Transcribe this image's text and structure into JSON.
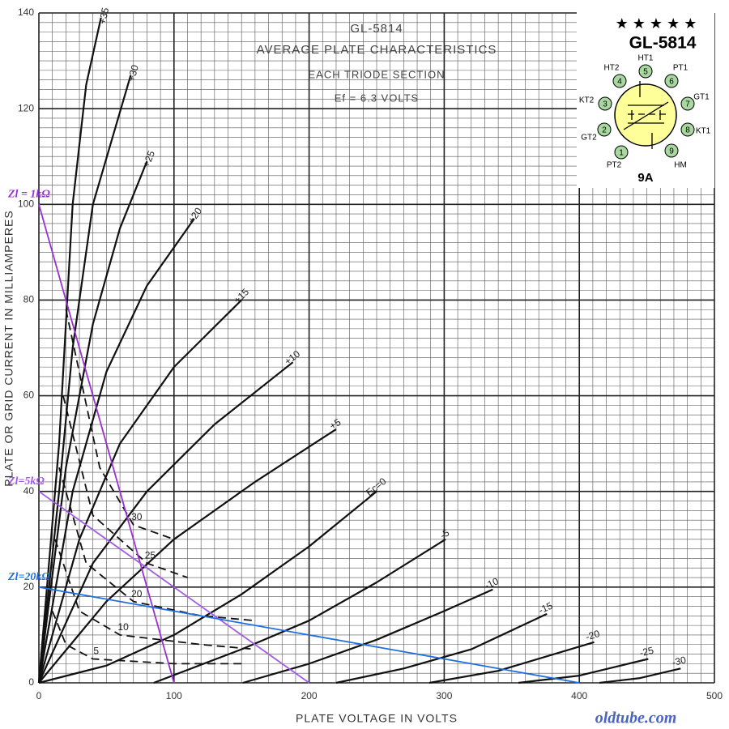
{
  "chart_data": {
    "type": "line",
    "title": "GL-5814",
    "subtitle": "AVERAGE PLATE CHARACTERISTICS",
    "annotations": [
      "EACH TRIODE SECTION",
      "Ef = 6.3 VOLTS"
    ],
    "watermark": "oldtube.com",
    "xlabel": "PLATE VOLTAGE IN VOLTS",
    "ylabel": "PLATE OR GRID CURRENT IN MILLIAMPERES",
    "xlim": [
      0,
      500
    ],
    "xticks": [
      0,
      100,
      200,
      300,
      400,
      500
    ],
    "ylim": [
      0,
      140
    ],
    "yticks": [
      0,
      20,
      40,
      60,
      80,
      100,
      120,
      140
    ],
    "grid": true,
    "minor_grid": {
      "x": 10,
      "y": 2
    },
    "series": [
      {
        "name": "+35",
        "color": "#111111",
        "style": "solid",
        "x": [
          0,
          15,
          25,
          35,
          46
        ],
        "values": [
          0,
          50,
          100,
          125,
          139
        ]
      },
      {
        "name": "+30",
        "color": "#111111",
        "style": "solid",
        "x": [
          0,
          15,
          25,
          40,
          68
        ],
        "values": [
          0,
          40,
          70,
          100,
          127
        ]
      },
      {
        "name": "+25",
        "color": "#111111",
        "style": "solid",
        "x": [
          0,
          20,
          40,
          60,
          80
        ],
        "values": [
          0,
          45,
          75,
          95,
          109
        ]
      },
      {
        "name": "+20",
        "color": "#111111",
        "style": "solid",
        "x": [
          0,
          25,
          50,
          80,
          115
        ],
        "values": [
          0,
          40,
          65,
          83,
          97
        ]
      },
      {
        "name": "+15",
        "color": "#111111",
        "style": "solid",
        "x": [
          0,
          30,
          60,
          100,
          150
        ],
        "values": [
          0,
          30,
          50,
          66,
          80
        ]
      },
      {
        "name": "+10",
        "color": "#111111",
        "style": "solid",
        "x": [
          0,
          40,
          80,
          130,
          188
        ],
        "values": [
          0,
          25,
          40,
          54,
          67
        ]
      },
      {
        "name": "+5",
        "color": "#111111",
        "style": "solid",
        "x": [
          0,
          50,
          100,
          160,
          220
        ],
        "values": [
          0,
          17,
          30,
          42,
          53
        ]
      },
      {
        "name": "Ec=0",
        "color": "#111111",
        "style": "solid",
        "x": [
          0,
          50,
          100,
          150,
          200,
          250
        ],
        "values": [
          0,
          3.6,
          10,
          18.5,
          28.5,
          40
        ]
      },
      {
        "name": "-5",
        "color": "#111111",
        "style": "solid",
        "x": [
          85,
          150,
          200,
          250,
          301
        ],
        "values": [
          0,
          7,
          13,
          21,
          30
        ]
      },
      {
        "name": "-10",
        "color": "#111111",
        "style": "solid",
        "x": [
          151,
          200,
          250,
          300,
          336
        ],
        "values": [
          0,
          4,
          9,
          15,
          19.5
        ]
      },
      {
        "name": "-15",
        "color": "#111111",
        "style": "solid",
        "x": [
          220,
          270,
          320,
          376
        ],
        "values": [
          0,
          3,
          7,
          14.4
        ]
      },
      {
        "name": "-20",
        "color": "#111111",
        "style": "solid",
        "x": [
          289,
          340,
          411
        ],
        "values": [
          0,
          2.5,
          8.5
        ]
      },
      {
        "name": "-25",
        "color": "#111111",
        "style": "solid",
        "x": [
          355,
          400,
          451
        ],
        "values": [
          0,
          1.5,
          5
        ]
      },
      {
        "name": "-30",
        "color": "#111111",
        "style": "solid",
        "x": [
          415,
          445,
          475
        ],
        "values": [
          0,
          1,
          3
        ]
      },
      {
        "name": "5",
        "color": "#111111",
        "style": "dashed",
        "x": [
          10,
          20,
          40,
          100,
          150
        ],
        "values": [
          15,
          8,
          5,
          4,
          4
        ]
      },
      {
        "name": "10",
        "color": "#111111",
        "style": "dashed",
        "x": [
          12,
          30,
          60,
          120,
          160
        ],
        "values": [
          30,
          15,
          10,
          8,
          7
        ]
      },
      {
        "name": "20",
        "color": "#111111",
        "style": "dashed",
        "x": [
          15,
          35,
          70,
          120,
          160
        ],
        "values": [
          45,
          25,
          17,
          14,
          13
        ]
      },
      {
        "name": "25",
        "color": "#111111",
        "style": "dashed",
        "x": [
          18,
          40,
          80,
          110
        ],
        "values": [
          60,
          35,
          25,
          22
        ]
      },
      {
        "name": "30",
        "color": "#111111",
        "style": "dashed",
        "x": [
          20,
          45,
          70,
          100
        ],
        "values": [
          78,
          45,
          33,
          30
        ]
      },
      {
        "name": "Zl = 1kΩ",
        "color": "#9b30d0",
        "style": "load",
        "x": [
          0,
          100
        ],
        "values": [
          100,
          0
        ]
      },
      {
        "name": "Zl=5kΩ",
        "color": "#a35ae8",
        "style": "load",
        "x": [
          0,
          200
        ],
        "values": [
          40,
          0
        ]
      },
      {
        "name": "Zl=20kΩ",
        "color": "#1f6fe0",
        "style": "load",
        "x": [
          0,
          400
        ],
        "values": [
          20,
          0
        ]
      }
    ],
    "inset": {
      "stars": "★ ★ ★ ★ ★",
      "title": "GL-5814",
      "base": "9A",
      "pins": [
        {
          "number": "1",
          "label": "PT2"
        },
        {
          "number": "2",
          "label": "GT2"
        },
        {
          "number": "3",
          "label": "KT2"
        },
        {
          "number": "4",
          "label": "HT2"
        },
        {
          "number": "5",
          "label": "HT1"
        },
        {
          "number": "6",
          "label": "PT1"
        },
        {
          "number": "7",
          "label": "GT1"
        },
        {
          "number": "8",
          "label": "KT1"
        },
        {
          "number": "9",
          "label": "HM"
        }
      ]
    }
  }
}
